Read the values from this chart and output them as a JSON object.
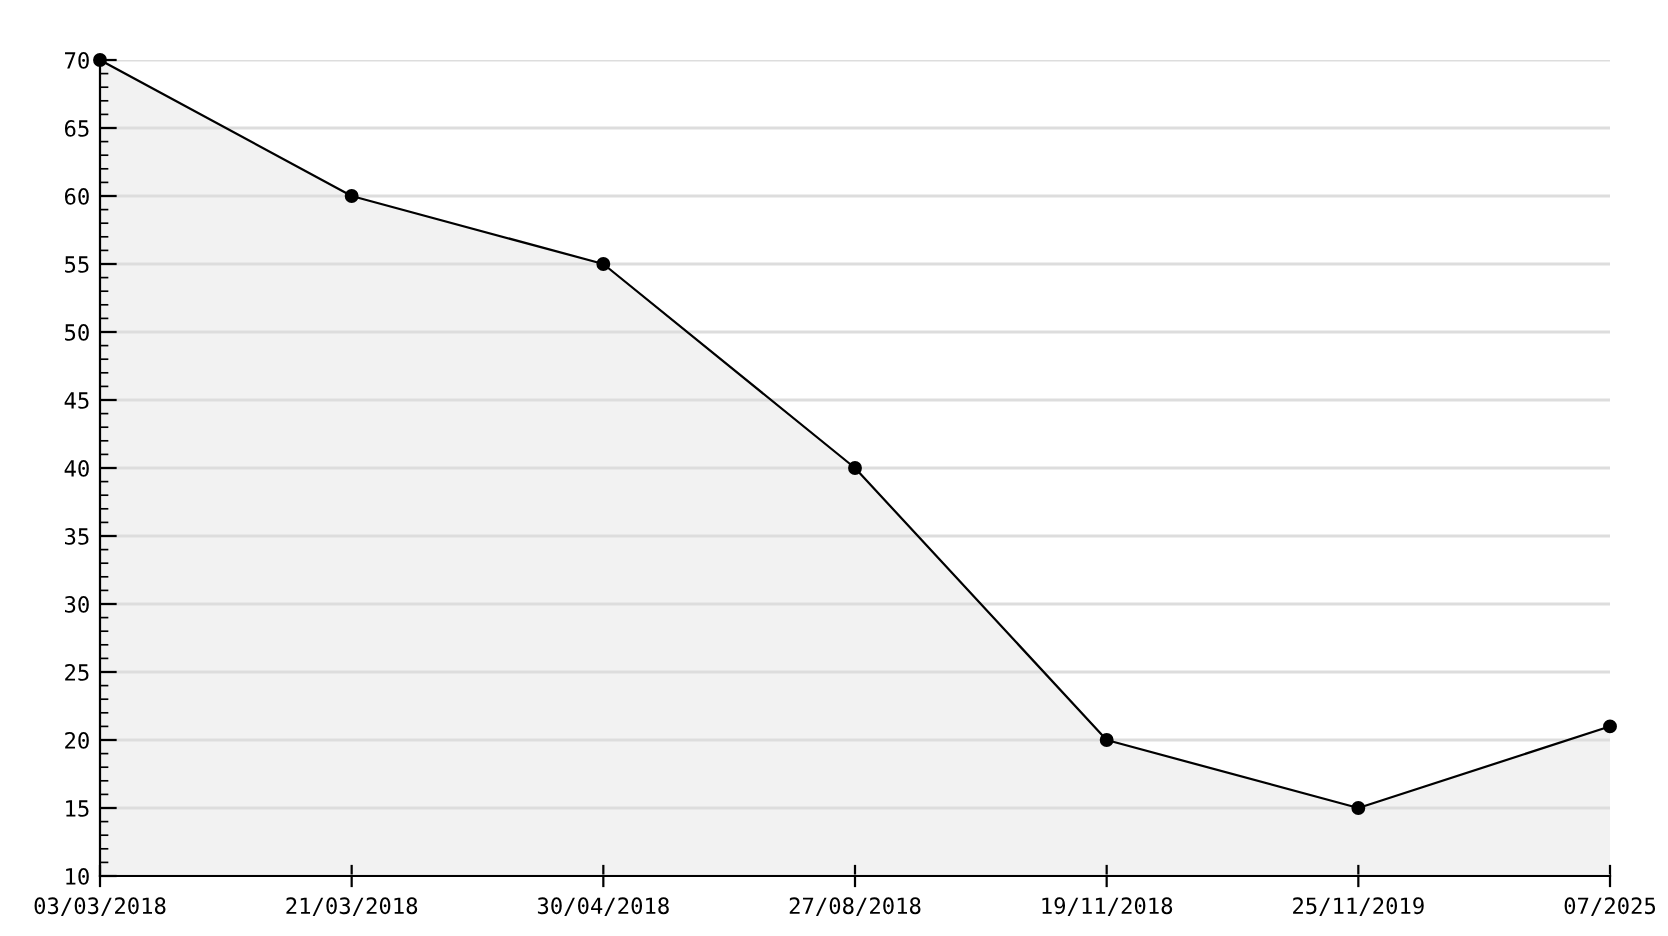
{
  "chart_data": {
    "type": "area",
    "categories": [
      "03/03/2018",
      "21/03/2018",
      "30/04/2018",
      "27/08/2018",
      "19/11/2018",
      "25/11/2019",
      "07/2025"
    ],
    "series": [
      {
        "color": "#000000",
        "values": [
          70,
          60,
          55,
          40,
          20,
          15,
          21
        ]
      }
    ],
    "ylim": [
      10,
      70
    ],
    "yticks": [
      10,
      15,
      20,
      25,
      30,
      35,
      40,
      45,
      50,
      55,
      60,
      65,
      70
    ],
    "grid": "y",
    "marker": "circle",
    "line_style": "solid"
  }
}
